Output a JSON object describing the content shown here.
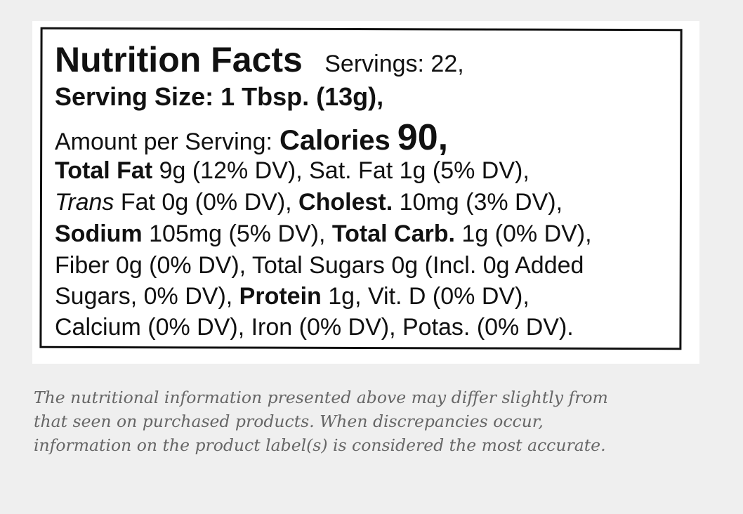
{
  "label": {
    "lines": [
      [
        "Nutrition Facts",
        "Servings: 22,"
      ],
      [
        "Serving Size: 1 Tbsp. (13g),"
      ],
      [
        "Amount per Serving:",
        "Calories",
        "90,"
      ],
      [
        "Total Fat",
        "9g (12% DV), Sat. Fat 1g (5% DV),"
      ],
      [
        "Trans",
        "Fat 0g (0% DV),",
        "Cholest.",
        "10mg (3% DV),"
      ],
      [
        "Sodium",
        "105mg (5% DV),",
        "Total Carb.",
        "1g (0% DV),"
      ],
      [
        "Fiber 0g (0% DV), Total Sugars 0g (Incl. 0g Added"
      ],
      [
        "Sugars, 0% DV),",
        "Protein",
        "1g, Vit. D (0% DV),"
      ],
      [
        "Calcium (0% DV), Iron (0% DV), Potas. (0% DV)."
      ]
    ]
  },
  "disclaimer": [
    "The nutritional information presented above may differ slightly from",
    "that seen on purchased products. When discrepancies occur,",
    "information on the product label(s) is considered the most accurate."
  ]
}
